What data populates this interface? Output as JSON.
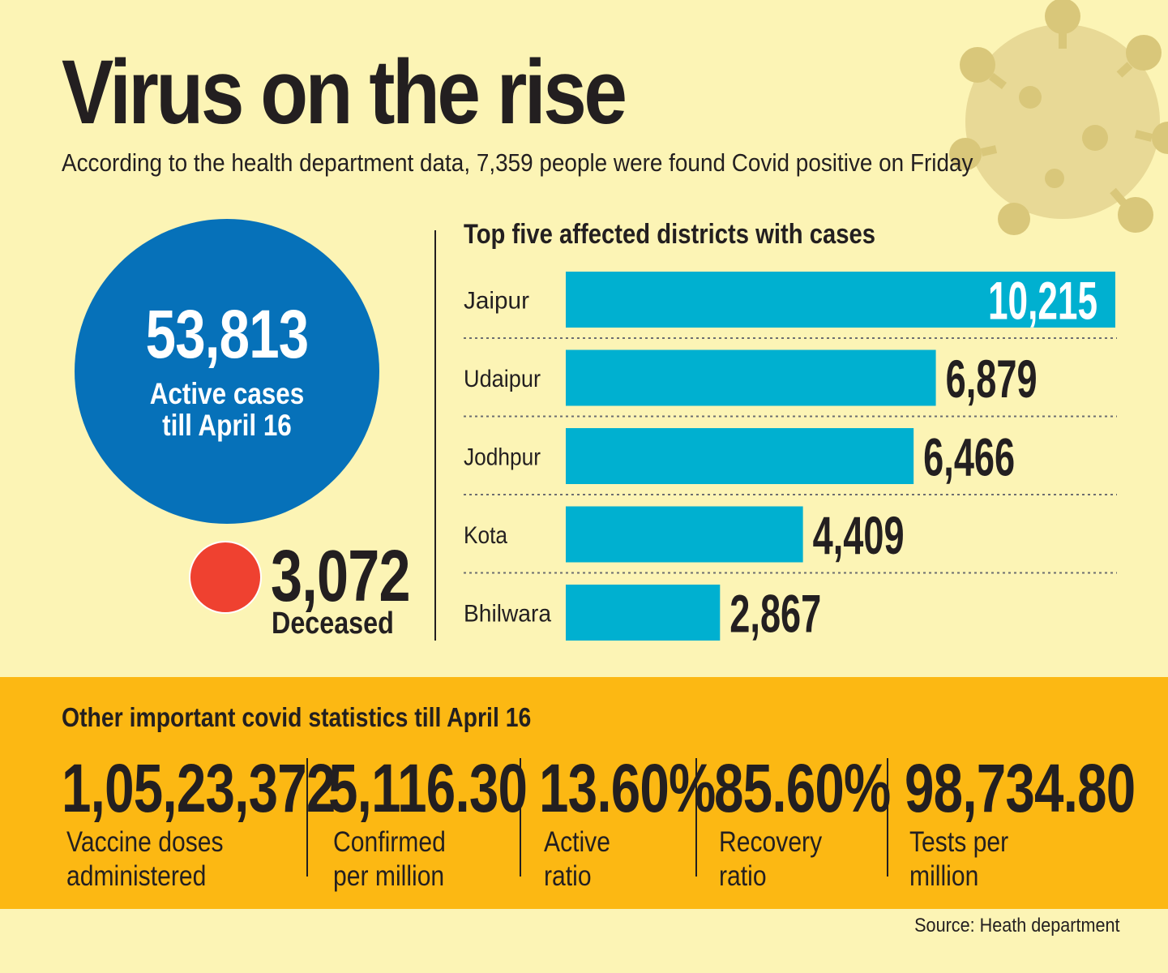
{
  "header": {
    "title": "Virus on the rise",
    "subtitle": "According to the health department data, 7,359 people were found Covid positive on Friday"
  },
  "active": {
    "value": "53,813",
    "label_line1": "Active cases",
    "label_line2": "till April 16"
  },
  "deceased": {
    "value": "3,072",
    "label": "Deceased"
  },
  "colors": {
    "background": "#fcf4b5",
    "bar": "#00b0d0",
    "active_circle": "#0671b9",
    "deceased_dot": "#ef4130",
    "band": "#fcb813"
  },
  "chart_data": {
    "type": "bar",
    "orientation": "horizontal",
    "title": "Top five affected districts with cases",
    "categories": [
      "Jaipur",
      "Udaipur",
      "Jodhpur",
      "Kota",
      "Bhilwara"
    ],
    "values": [
      10215,
      6879,
      6466,
      4409,
      2867
    ],
    "value_labels": [
      "10,215",
      "6,879",
      "6,466",
      "4,409",
      "2,867"
    ],
    "xlim": [
      0,
      10215
    ],
    "grid": false
  },
  "stats": {
    "title": "Other important covid statistics till April 16",
    "items": [
      {
        "value": "1,05,23,372",
        "line1": "Vaccine doses",
        "line2": "administered"
      },
      {
        "value": "5,116.30",
        "line1": "Confirmed",
        "line2": "per million"
      },
      {
        "value": "13.60%",
        "line1": "Active",
        "line2": "ratio"
      },
      {
        "value": "85.60%",
        "line1": "Recovery",
        "line2": "ratio"
      },
      {
        "value": "98,734.80",
        "line1": "Tests per",
        "line2": "million"
      }
    ]
  },
  "source": "Source: Heath department"
}
